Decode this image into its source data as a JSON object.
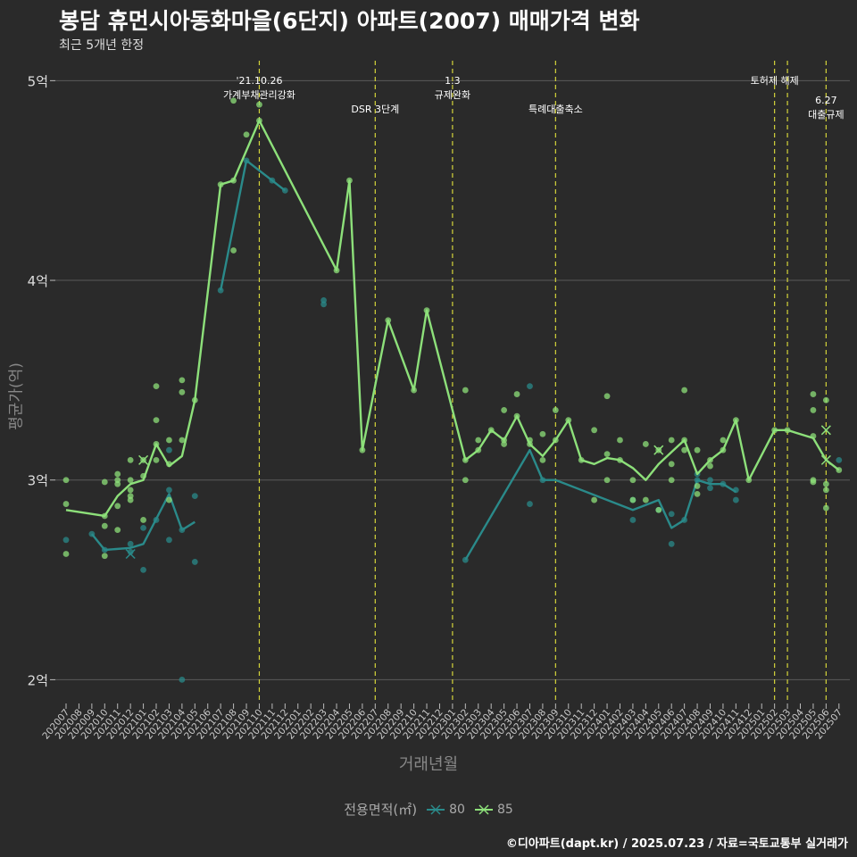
{
  "title": "봉담 휴먼시아동화마을(6단지) 아파트(2007) 매매가격 변화",
  "subtitle": "최근 5개년 한정",
  "caption": "©디아파트(dapt.kr) / 2025.07.23 / 자료=국토교통부 실거래가",
  "legend": {
    "title": "전용면적(㎡)",
    "items": [
      {
        "label": "80",
        "color": "#2a8a8a"
      },
      {
        "label": "85",
        "color": "#8de07a"
      }
    ]
  },
  "chart_data": {
    "type": "line",
    "xlabel": "거래년월",
    "ylabel": "평균가(억)",
    "categories": [
      "202007",
      "202008",
      "202009",
      "202010",
      "202011",
      "202012",
      "202101",
      "202102",
      "202103",
      "202104",
      "202105",
      "202106",
      "202107",
      "202108",
      "202109",
      "202110",
      "202111",
      "202112",
      "202201",
      "202202",
      "202203",
      "202204",
      "202205",
      "202206",
      "202207",
      "202208",
      "202209",
      "202210",
      "202211",
      "202212",
      "202301",
      "202302",
      "202303",
      "202304",
      "202305",
      "202306",
      "202307",
      "202308",
      "202309",
      "202310",
      "202311",
      "202312",
      "202401",
      "202402",
      "202403",
      "202404",
      "202405",
      "202406",
      "202407",
      "202408",
      "202409",
      "202410",
      "202411",
      "202412",
      "202501",
      "202502",
      "202503",
      "202504",
      "202505",
      "202506",
      "202507"
    ],
    "ylim": [
      1.89,
      5.1
    ],
    "yticks": [
      {
        "value": 2,
        "label": "2억"
      },
      {
        "value": 3,
        "label": "3억"
      },
      {
        "value": 4,
        "label": "4억"
      },
      {
        "value": 5,
        "label": "5억"
      }
    ],
    "series": [
      {
        "name": "80",
        "color": "#2a8a8a",
        "line": [
          [
            0,
            null
          ],
          [
            2,
            2.73
          ],
          [
            3,
            2.65
          ],
          [
            5,
            2.66
          ],
          [
            6,
            2.68
          ],
          [
            8,
            2.93
          ],
          [
            9,
            2.75
          ],
          [
            10,
            2.79
          ],
          [
            12,
            3.95
          ],
          [
            14,
            4.6
          ],
          [
            16,
            4.5
          ],
          [
            17,
            4.45
          ],
          [
            31,
            2.6
          ],
          [
            36,
            3.15
          ],
          [
            37,
            3.0
          ],
          [
            38,
            3.0
          ],
          [
            44,
            2.85
          ],
          [
            46,
            2.9
          ],
          [
            47,
            2.76
          ],
          [
            48,
            2.8
          ],
          [
            49,
            3.0
          ],
          [
            50,
            2.98
          ],
          [
            51,
            2.98
          ],
          [
            52,
            2.94
          ]
        ],
        "segments": [
          [
            [
              2,
              2.73
            ],
            [
              3,
              2.65
            ],
            [
              5,
              2.66
            ],
            [
              6,
              2.68
            ],
            [
              8,
              2.93
            ],
            [
              9,
              2.75
            ],
            [
              10,
              2.79
            ]
          ],
          [
            [
              12,
              3.95
            ],
            [
              14,
              4.6
            ],
            [
              16,
              4.5
            ],
            [
              17,
              4.45
            ]
          ],
          [
            [
              31,
              2.6
            ],
            [
              36,
              3.15
            ],
            [
              37,
              3.0
            ],
            [
              38,
              3.0
            ],
            [
              44,
              2.85
            ],
            [
              46,
              2.9
            ],
            [
              47,
              2.76
            ],
            [
              48,
              2.8
            ],
            [
              49,
              3.0
            ],
            [
              50,
              2.98
            ],
            [
              51,
              2.98
            ],
            [
              52,
              2.94
            ]
          ]
        ],
        "points": [
          [
            0,
            2.7
          ],
          [
            2,
            2.73
          ],
          [
            3,
            2.65
          ],
          [
            5,
            2.68
          ],
          [
            5,
            2.64
          ],
          [
            6,
            2.55
          ],
          [
            6,
            2.76
          ],
          [
            7,
            2.8
          ],
          [
            8,
            2.95
          ],
          [
            8,
            2.7
          ],
          [
            8,
            3.15
          ],
          [
            9,
            2.75
          ],
          [
            9,
            2.0
          ],
          [
            10,
            2.59
          ],
          [
            10,
            2.92
          ],
          [
            12,
            3.95
          ],
          [
            14,
            4.6
          ],
          [
            16,
            4.5
          ],
          [
            17,
            4.45
          ],
          [
            20,
            3.88
          ],
          [
            20,
            3.9
          ],
          [
            31,
            2.6
          ],
          [
            36,
            3.47
          ],
          [
            36,
            2.88
          ],
          [
            37,
            3.0
          ],
          [
            44,
            2.8
          ],
          [
            44,
            2.9
          ],
          [
            46,
            2.85
          ],
          [
            47,
            2.68
          ],
          [
            47,
            2.83
          ],
          [
            48,
            2.8
          ],
          [
            49,
            3.0
          ],
          [
            49,
            3.03
          ],
          [
            50,
            3.0
          ],
          [
            50,
            2.96
          ],
          [
            51,
            2.98
          ],
          [
            52,
            2.9
          ],
          [
            52,
            2.95
          ],
          [
            60,
            3.1
          ]
        ],
        "cross": [
          [
            5,
            2.63
          ]
        ]
      },
      {
        "name": "85",
        "color": "#8de07a",
        "line": [
          [
            0,
            2.85
          ],
          [
            3,
            2.82
          ],
          [
            4,
            2.92
          ],
          [
            5,
            2.98
          ],
          [
            6,
            3.0
          ],
          [
            7,
            3.18
          ],
          [
            8,
            3.07
          ],
          [
            9,
            3.12
          ],
          [
            10,
            3.4
          ],
          [
            12,
            4.48
          ],
          [
            13,
            4.5
          ],
          [
            15,
            4.8
          ],
          [
            21,
            4.05
          ],
          [
            22,
            4.5
          ],
          [
            23,
            3.15
          ],
          [
            25,
            3.8
          ],
          [
            27,
            3.45
          ],
          [
            28,
            3.85
          ],
          [
            31,
            3.1
          ],
          [
            32,
            3.15
          ],
          [
            33,
            3.25
          ],
          [
            34,
            3.2
          ],
          [
            35,
            3.32
          ],
          [
            36,
            3.18
          ],
          [
            37,
            3.12
          ],
          [
            38,
            3.2
          ],
          [
            39,
            3.3
          ],
          [
            40,
            3.1
          ],
          [
            41,
            3.08
          ],
          [
            42,
            3.11
          ],
          [
            43,
            3.1
          ],
          [
            44,
            3.06
          ],
          [
            45,
            3.0
          ],
          [
            46,
            3.08
          ],
          [
            47,
            3.14
          ],
          [
            48,
            3.2
          ],
          [
            49,
            3.03
          ],
          [
            50,
            3.1
          ],
          [
            51,
            3.15
          ],
          [
            52,
            3.3
          ],
          [
            53,
            3.0
          ],
          [
            55,
            3.25
          ],
          [
            56,
            3.25
          ],
          [
            58,
            3.21
          ],
          [
            59,
            3.1
          ],
          [
            60,
            3.05
          ]
        ],
        "points": [
          [
            0,
            3.0
          ],
          [
            0,
            2.88
          ],
          [
            0,
            2.63
          ],
          [
            3,
            2.99
          ],
          [
            3,
            2.82
          ],
          [
            3,
            2.77
          ],
          [
            3,
            2.62
          ],
          [
            4,
            2.75
          ],
          [
            4,
            3.0
          ],
          [
            4,
            3.03
          ],
          [
            4,
            2.98
          ],
          [
            4,
            2.87
          ],
          [
            5,
            2.95
          ],
          [
            5,
            2.92
          ],
          [
            5,
            2.9
          ],
          [
            5,
            3.0
          ],
          [
            5,
            3.1
          ],
          [
            6,
            3.1
          ],
          [
            6,
            2.8
          ],
          [
            6,
            3.02
          ],
          [
            7,
            3.47
          ],
          [
            7,
            3.3
          ],
          [
            7,
            3.18
          ],
          [
            7,
            3.1
          ],
          [
            8,
            3.2
          ],
          [
            8,
            3.08
          ],
          [
            8,
            2.9
          ],
          [
            9,
            3.5
          ],
          [
            9,
            3.44
          ],
          [
            9,
            3.2
          ],
          [
            10,
            3.4
          ],
          [
            12,
            4.48
          ],
          [
            13,
            4.9
          ],
          [
            13,
            4.15
          ],
          [
            13,
            4.5
          ],
          [
            14,
            4.73
          ],
          [
            15,
            4.88
          ],
          [
            15,
            4.8
          ],
          [
            21,
            4.05
          ],
          [
            22,
            4.5
          ],
          [
            23,
            3.15
          ],
          [
            25,
            3.8
          ],
          [
            27,
            3.45
          ],
          [
            28,
            3.85
          ],
          [
            31,
            3.45
          ],
          [
            31,
            3.0
          ],
          [
            31,
            3.1
          ],
          [
            32,
            3.15
          ],
          [
            32,
            3.2
          ],
          [
            33,
            3.25
          ],
          [
            34,
            3.35
          ],
          [
            34,
            3.18
          ],
          [
            34,
            3.2
          ],
          [
            35,
            3.43
          ],
          [
            35,
            3.32
          ],
          [
            36,
            3.2
          ],
          [
            36,
            3.18
          ],
          [
            37,
            3.23
          ],
          [
            37,
            3.1
          ],
          [
            38,
            3.35
          ],
          [
            38,
            3.2
          ],
          [
            39,
            3.3
          ],
          [
            40,
            3.1
          ],
          [
            41,
            2.9
          ],
          [
            41,
            3.25
          ],
          [
            42,
            3.42
          ],
          [
            42,
            3.13
          ],
          [
            42,
            3.0
          ],
          [
            43,
            3.2
          ],
          [
            43,
            3.1
          ],
          [
            44,
            3.0
          ],
          [
            44,
            2.9
          ],
          [
            45,
            3.18
          ],
          [
            45,
            2.9
          ],
          [
            46,
            3.15
          ],
          [
            46,
            2.85
          ],
          [
            47,
            3.2
          ],
          [
            47,
            3.08
          ],
          [
            47,
            3.0
          ],
          [
            48,
            3.45
          ],
          [
            48,
            3.2
          ],
          [
            48,
            3.15
          ],
          [
            49,
            3.15
          ],
          [
            49,
            2.97
          ],
          [
            49,
            2.93
          ],
          [
            50,
            3.1
          ],
          [
            50,
            3.07
          ],
          [
            51,
            3.2
          ],
          [
            51,
            3.15
          ],
          [
            52,
            3.3
          ],
          [
            53,
            3.0
          ],
          [
            55,
            3.25
          ],
          [
            56,
            3.25
          ],
          [
            58,
            3.43
          ],
          [
            58,
            3.35
          ],
          [
            58,
            3.22
          ],
          [
            58,
            3.0
          ],
          [
            58,
            2.99
          ],
          [
            59,
            3.4
          ],
          [
            59,
            2.98
          ],
          [
            59,
            2.95
          ],
          [
            59,
            2.86
          ],
          [
            60,
            3.05
          ]
        ],
        "cross": [
          [
            6,
            3.1
          ],
          [
            46,
            3.15
          ],
          [
            59,
            3.25
          ],
          [
            59,
            3.1
          ]
        ]
      }
    ],
    "events": [
      {
        "idx": 15,
        "lines": [
          "'21.10.26",
          "가계부채관리강화"
        ],
        "level": 0
      },
      {
        "idx": 24,
        "lines": [
          "DSR 3단계"
        ],
        "level": 1
      },
      {
        "idx": 30,
        "lines": [
          "1.3",
          "규제완화"
        ],
        "level": 0
      },
      {
        "idx": 38,
        "lines": [
          "특례대출축소"
        ],
        "level": 1
      },
      {
        "idx": 55,
        "lines": [
          "토허제 해제"
        ],
        "level": 0
      },
      {
        "idx": 56,
        "lines": [],
        "level": 0
      },
      {
        "idx": 59,
        "lines": [
          "6.27",
          "대출규제"
        ],
        "level": 2
      }
    ]
  }
}
